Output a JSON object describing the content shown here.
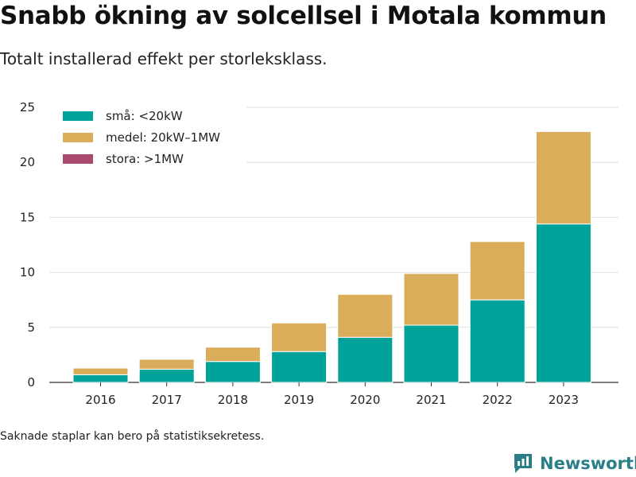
{
  "header": {
    "title": "Snabb ökning av solcellsel i Motala kommun",
    "subtitle": "Totalt installerad effekt per storleksklass."
  },
  "footer": {
    "note": "Saknade staplar kan bero på statistiksekretess.",
    "brand": "Newsworthy",
    "brand_color": "#2a7f87"
  },
  "chart_data": {
    "type": "bar",
    "stacked": true,
    "categories": [
      "2016",
      "2017",
      "2018",
      "2019",
      "2020",
      "2021",
      "2022",
      "2023"
    ],
    "series": [
      {
        "name": "små: <20kW",
        "color": "#00a399",
        "values": [
          0.7,
          1.2,
          1.9,
          2.8,
          4.1,
          5.2,
          7.5,
          14.4
        ]
      },
      {
        "name": "medel: 20kW–1MW",
        "color": "#d9ad59",
        "values": [
          0.6,
          0.9,
          1.3,
          2.6,
          3.9,
          4.7,
          5.3,
          8.4
        ]
      },
      {
        "name": "stora: >1MW",
        "color": "#a64a6e",
        "values": [
          0,
          0,
          0,
          0,
          0,
          0,
          0,
          0
        ]
      }
    ],
    "ylim": [
      0,
      25
    ],
    "yticks": [
      0,
      5,
      10,
      15,
      20,
      25
    ],
    "xlabel": "",
    "ylabel": "",
    "grid": true,
    "legend_position": "top-left"
  }
}
